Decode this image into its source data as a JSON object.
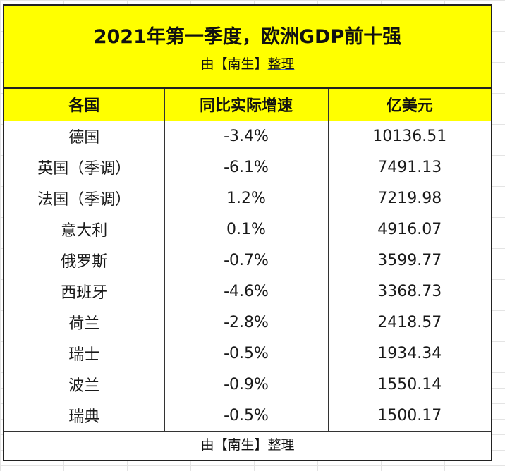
{
  "title": "2021年第一季度，欧洲GDP前十强",
  "subtitle_prefix": "由【南生】",
  "subtitle_suffix": "整理",
  "headers": [
    "各国",
    "同比实际增速",
    "亿美元"
  ],
  "rows": [
    {
      "country": "德国",
      "growth": "-3.4%",
      "gdp": "10136.51"
    },
    {
      "country": "英国（季调）",
      "growth": "-6.1%",
      "gdp": "7491.13"
    },
    {
      "country": "法国（季调）",
      "growth": "1.2%",
      "gdp": "7219.98"
    },
    {
      "country": "意大利",
      "growth": "0.1%",
      "gdp": "4916.07"
    },
    {
      "country": "俄罗斯",
      "growth": "-0.7%",
      "gdp": "3599.77"
    },
    {
      "country": "西班牙",
      "growth": "-4.6%",
      "gdp": "3368.73"
    },
    {
      "country": "荷兰",
      "growth": "-2.8%",
      "gdp": "2418.57"
    },
    {
      "country": "瑞士",
      "growth": "-0.5%",
      "gdp": "1934.34"
    },
    {
      "country": "波兰",
      "growth": "-0.9%",
      "gdp": "1550.14"
    },
    {
      "country": "瑞典",
      "growth": "-0.5%",
      "gdp": "1500.17"
    }
  ],
  "footer": "由【南生】整理",
  "colors": {
    "header_fill": "#ffff00",
    "border": "#333333"
  }
}
